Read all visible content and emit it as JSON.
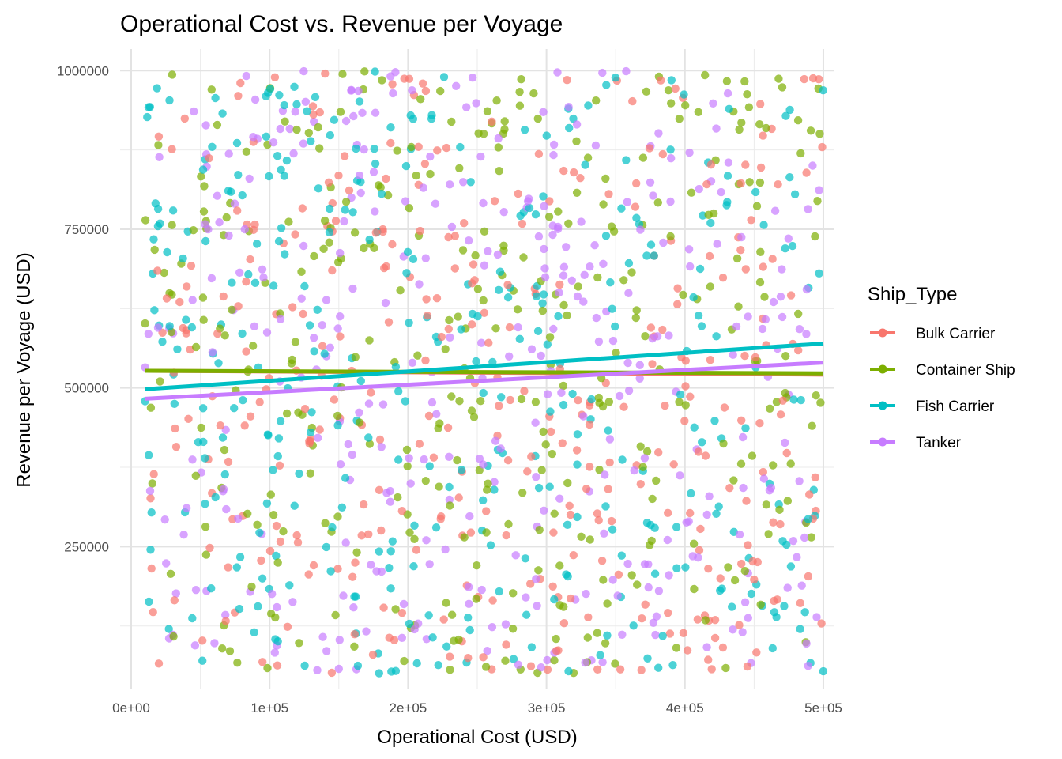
{
  "chart_data": {
    "type": "scatter",
    "title": "Operational Cost vs. Revenue per Voyage",
    "xlabel": "Operational Cost (USD)",
    "ylabel": "Revenue per Voyage (USD)",
    "xlim": [
      -8000,
      508000
    ],
    "ylim": [
      25000,
      1034000
    ],
    "x_ticks": [
      0,
      100000,
      200000,
      300000,
      400000,
      500000
    ],
    "x_tick_labels": [
      "0e+00",
      "1e+05",
      "2e+05",
      "3e+05",
      "4e+05",
      "5e+05"
    ],
    "y_ticks": [
      250000,
      500000,
      750000,
      1000000
    ],
    "y_tick_labels": [
      "250000",
      "500000",
      "750000",
      "1000000"
    ],
    "grid": true,
    "point_alpha": 0.7,
    "points_per_series": 350,
    "x_range": [
      10000,
      500000
    ],
    "y_range": [
      50000,
      1000000
    ],
    "legend": {
      "title": "Ship_Type",
      "position": "right"
    },
    "series": [
      {
        "name": "Bulk Carrier",
        "color": "#F8766D",
        "trend": {
          "x": [
            10000,
            500000
          ],
          "y": [
            527000,
            521000
          ]
        }
      },
      {
        "name": "Container Ship",
        "color": "#7CAE00",
        "trend": {
          "x": [
            10000,
            500000
          ],
          "y": [
            527000,
            523000
          ]
        }
      },
      {
        "name": "Fish Carrier",
        "color": "#00BFC4",
        "trend": {
          "x": [
            10000,
            500000
          ],
          "y": [
            498000,
            570000
          ]
        }
      },
      {
        "name": "Tanker",
        "color": "#C77CFF",
        "trend": {
          "x": [
            10000,
            500000
          ],
          "y": [
            483000,
            540000
          ]
        }
      }
    ]
  }
}
